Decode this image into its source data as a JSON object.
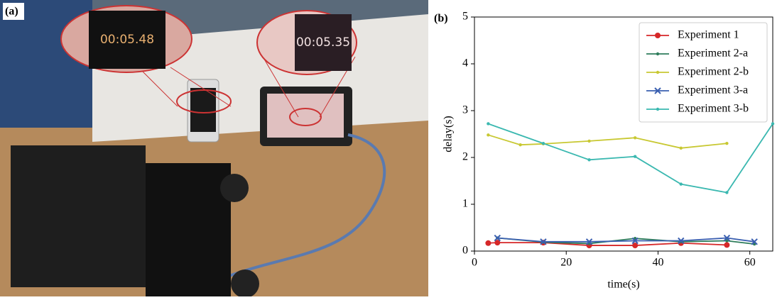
{
  "panel_a": {
    "label": "(a)",
    "stopwatch_left": "00:05.48",
    "stopwatch_right": "00:05.35"
  },
  "chart_data": {
    "type": "line",
    "panel_label": "(b)",
    "xlabel": "time(s)",
    "ylabel": "delay(s)",
    "xlim": [
      0,
      65
    ],
    "ylim": [
      0,
      5
    ],
    "xticks": [
      0,
      20,
      40,
      60
    ],
    "yticks": [
      0,
      1,
      2,
      3,
      4,
      5
    ],
    "grid": false,
    "legend": "upper right",
    "series": [
      {
        "name": "Experiment 1",
        "color": "#d62728",
        "marker": "o",
        "x": [
          3,
          5,
          15,
          25,
          35,
          45,
          55
        ],
        "values": [
          0.17,
          0.18,
          0.18,
          0.12,
          0.12,
          0.17,
          0.13
        ]
      },
      {
        "name": "Experiment 2-a",
        "color": "#2e7d5b",
        "marker": ".",
        "x": [
          5,
          15,
          25,
          35,
          45,
          55,
          61
        ],
        "values": [
          0.28,
          0.19,
          0.16,
          0.27,
          0.2,
          0.22,
          0.15
        ]
      },
      {
        "name": "Experiment 2-b",
        "color": "#c8c832",
        "marker": ".",
        "x": [
          3,
          10,
          15,
          25,
          35,
          45,
          55
        ],
        "values": [
          2.48,
          2.27,
          2.29,
          2.35,
          2.42,
          2.2,
          2.3
        ]
      },
      {
        "name": "Experiment 3-a",
        "color": "#3a5fb0",
        "marker": "x",
        "x": [
          5,
          15,
          25,
          35,
          45,
          55,
          61
        ],
        "values": [
          0.28,
          0.2,
          0.2,
          0.22,
          0.22,
          0.28,
          0.2
        ]
      },
      {
        "name": "Experiment 3-b",
        "color": "#3ab8b0",
        "marker": ".",
        "x": [
          3,
          15,
          25,
          35,
          45,
          55,
          65
        ],
        "values": [
          2.72,
          2.3,
          1.95,
          2.02,
          1.43,
          1.25,
          2.72
        ]
      }
    ]
  }
}
